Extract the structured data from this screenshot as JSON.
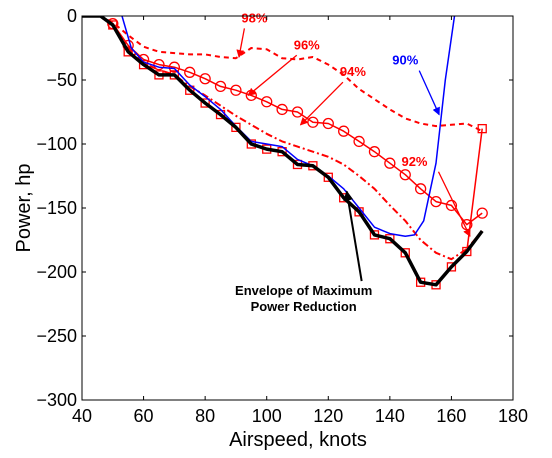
{
  "chart_data": {
    "type": "line",
    "xlabel": "Airspeed, knots",
    "ylabel": "Power, hp",
    "xlim": [
      40,
      180
    ],
    "ylim": [
      -300,
      0
    ],
    "xticks": [
      40,
      60,
      80,
      100,
      120,
      140,
      160,
      180
    ],
    "yticks": [
      0,
      -50,
      -100,
      -150,
      -200,
      -250,
      -300
    ],
    "grid": false,
    "legend": "none",
    "series": [
      {
        "id": "s98",
        "style": "dashed",
        "color": "#ff0000",
        "width": 2,
        "marker": "none",
        "x": [
          40,
          46,
          50,
          55,
          60,
          65,
          70,
          75,
          80,
          85,
          90,
          95,
          100,
          105,
          110,
          115,
          120,
          125,
          130,
          135,
          140,
          145,
          150,
          155,
          160,
          165,
          170
        ],
        "y": [
          0,
          0,
          -5,
          -15,
          -24,
          -28,
          -29,
          -30,
          -30,
          -32,
          -33,
          -25,
          -26,
          -33,
          -34,
          -32,
          -38,
          -46,
          -57,
          -65,
          -73,
          -80,
          -84,
          -86,
          -85,
          -84,
          -90
        ]
      },
      {
        "id": "s96",
        "style": "solid",
        "color": "#ff0000",
        "width": 1.5,
        "marker": "circle",
        "x": [
          40,
          46,
          50,
          55,
          60,
          65,
          70,
          75,
          80,
          85,
          90,
          95,
          100,
          105,
          110,
          115,
          120,
          125,
          130,
          135,
          140,
          145,
          150,
          155,
          160,
          165,
          170
        ],
        "y": [
          0,
          0,
          -6,
          -23,
          -34,
          -38,
          -40,
          -44,
          -49,
          -55,
          -58,
          -62,
          -67,
          -73,
          -75,
          -83,
          -84,
          -90,
          -98,
          -106,
          -115,
          -124,
          -135,
          -145,
          -148,
          -163,
          -154
        ]
      },
      {
        "id": "s94",
        "style": "dashdot",
        "color": "#ff0000",
        "width": 2,
        "marker": "none",
        "x": [
          40,
          46,
          50,
          55,
          60,
          65,
          70,
          75,
          80,
          85,
          90,
          95,
          100,
          105,
          110,
          115,
          120,
          125,
          130,
          135,
          140,
          145,
          150,
          155,
          160,
          165,
          170
        ],
        "y": [
          0,
          0,
          -6,
          -25,
          -37,
          -42,
          -46,
          -55,
          -62,
          -70,
          -78,
          -85,
          -92,
          -98,
          -102,
          -106,
          -110,
          -116,
          -125,
          -135,
          -148,
          -160,
          -175,
          -185,
          -190,
          -182,
          -168
        ]
      },
      {
        "id": "s92",
        "style": "solid",
        "color": "#ff0000",
        "width": 1.5,
        "marker": "square",
        "x": [
          40,
          46,
          50,
          55,
          60,
          65,
          70,
          75,
          80,
          85,
          90,
          95,
          100,
          105,
          110,
          115,
          120,
          125,
          130,
          135,
          140,
          145,
          150,
          155,
          160,
          165,
          170
        ],
        "y": [
          0,
          0,
          -7,
          -28,
          -38,
          -46,
          -46,
          -58,
          -68,
          -77,
          -87,
          -100,
          -104,
          -106,
          -116,
          -117,
          -126,
          -142,
          -153,
          -171,
          -174,
          -185,
          -208,
          -210,
          -196,
          -184,
          -88
        ]
      },
      {
        "id": "s90",
        "style": "solid",
        "color": "#0000ff",
        "width": 1.5,
        "marker": "none",
        "x": [
          53,
          56,
          60,
          65,
          70,
          75,
          80,
          85,
          90,
          95,
          100,
          105,
          110,
          115,
          120,
          125,
          130,
          135,
          140,
          145,
          148,
          151,
          155,
          158,
          161
        ],
        "y": [
          0,
          -25,
          -36,
          -40,
          -41,
          -54,
          -63,
          -73,
          -86,
          -98,
          -100,
          -102,
          -112,
          -117,
          -125,
          -135,
          -150,
          -165,
          -170,
          -172,
          -171,
          -160,
          -115,
          -50,
          0
        ]
      },
      {
        "id": "envelope",
        "style": "solid",
        "color": "#000000",
        "width": 3.5,
        "marker": "none",
        "x": [
          40,
          46,
          50,
          55,
          60,
          65,
          70,
          75,
          80,
          85,
          90,
          95,
          100,
          105,
          110,
          115,
          120,
          125,
          130,
          135,
          140,
          145,
          150,
          155,
          160,
          165,
          170
        ],
        "y": [
          0,
          0,
          -7,
          -28,
          -38,
          -46,
          -46,
          -58,
          -68,
          -77,
          -87,
          -100,
          -104,
          -106,
          -116,
          -117,
          -126,
          -142,
          -153,
          -171,
          -174,
          -185,
          -208,
          -210,
          -196,
          -184,
          -168
        ]
      }
    ],
    "annotations": [
      {
        "id": "a98",
        "text": "98%",
        "color": "#ff0000",
        "pos": [
          96,
          -5
        ],
        "arrow_to": [
          91,
          -32
        ]
      },
      {
        "id": "a96",
        "text": "96%",
        "color": "#ff0000",
        "pos": [
          113,
          -26
        ],
        "arrow_to": [
          94,
          -62
        ]
      },
      {
        "id": "a94",
        "text": "94%",
        "color": "#ff0000",
        "pos": [
          128,
          -47
        ],
        "arrow_to": [
          111,
          -85
        ]
      },
      {
        "id": "a90",
        "text": "90%",
        "color": "#0000ff",
        "pos": [
          145,
          -38
        ],
        "arrow_to": [
          156,
          -77
        ]
      },
      {
        "id": "a92",
        "text": "92%",
        "color": "#ff0000",
        "pos": [
          148,
          -117
        ],
        "arrow_to": [
          166,
          -172
        ]
      },
      {
        "id": "aenv",
        "text": "Envelope of Maximum",
        "text2": "Power Reduction",
        "color": "#000000",
        "pos": [
          112,
          -218
        ],
        "arrow_to": [
          126,
          -137
        ]
      }
    ]
  }
}
